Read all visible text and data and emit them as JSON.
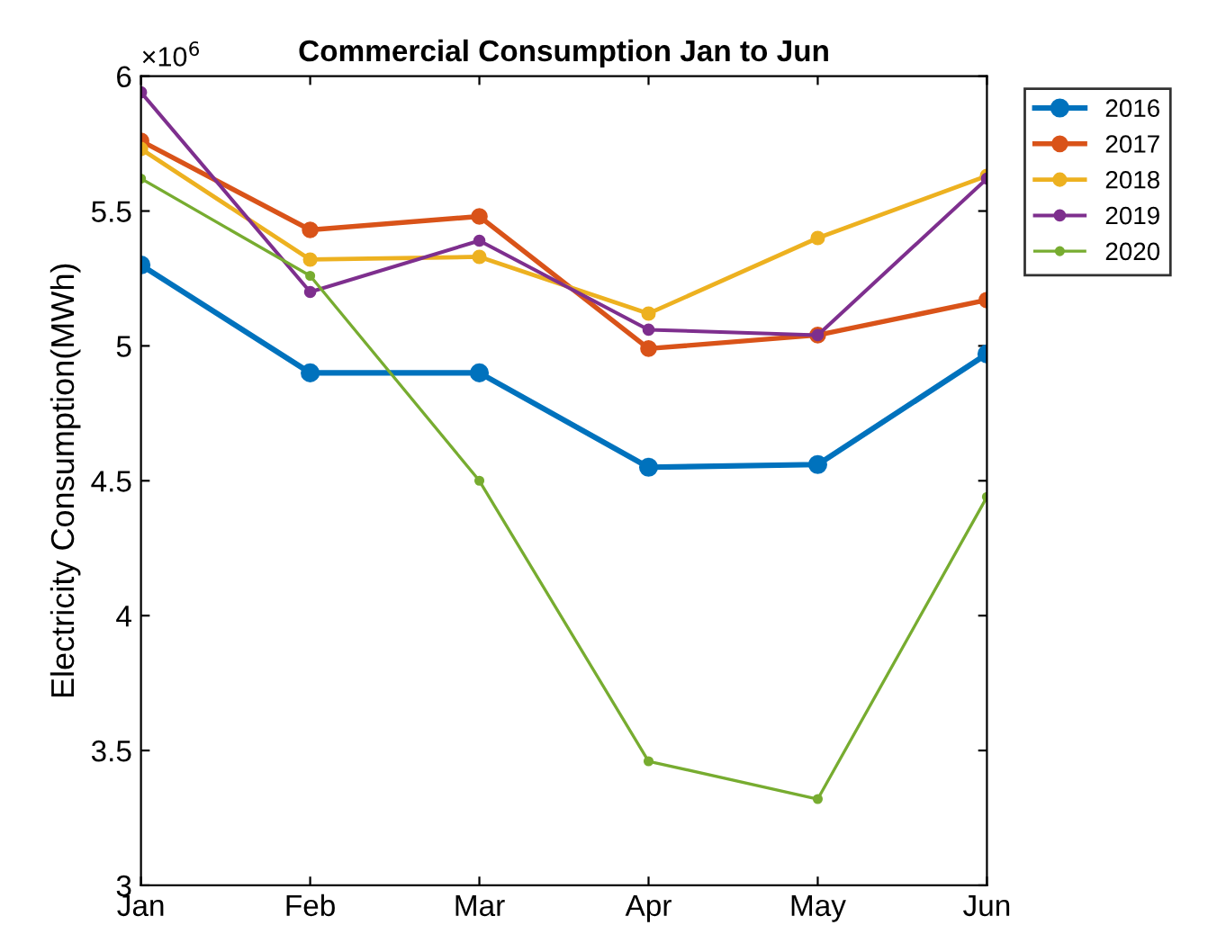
{
  "chart_data": {
    "type": "line",
    "title": "Commercial Consumption Jan to Jun",
    "ylabel": "Electricity Consumption(MWh)",
    "categories": [
      "Jan",
      "Feb",
      "Mar",
      "Apr",
      "May",
      "Jun"
    ],
    "series": [
      {
        "name": "2016",
        "color": "#0072bd",
        "values": [
          5.3,
          4.9,
          4.9,
          4.55,
          4.56,
          4.97
        ]
      },
      {
        "name": "2017",
        "color": "#d95319",
        "values": [
          5.76,
          5.43,
          5.48,
          4.99,
          5.04,
          5.17
        ]
      },
      {
        "name": "2018",
        "color": "#edb120",
        "values": [
          5.73,
          5.32,
          5.33,
          5.12,
          5.4,
          5.63
        ]
      },
      {
        "name": "2019",
        "color": "#7e2f8e",
        "values": [
          5.94,
          5.2,
          5.39,
          5.06,
          5.04,
          5.62
        ]
      },
      {
        "name": "2020",
        "color": "#77ac30",
        "values": [
          5.62,
          5.26,
          4.5,
          3.46,
          3.32,
          4.44
        ]
      }
    ],
    "ylim": [
      3,
      6
    ],
    "yticks": [
      3,
      3.5,
      4,
      4.5,
      5,
      5.5,
      6
    ],
    "annotations": [
      "×10$^{6}$"
    ],
    "legend": "top right",
    "marker": "circle",
    "line_style": "solid",
    "grid": false
  }
}
